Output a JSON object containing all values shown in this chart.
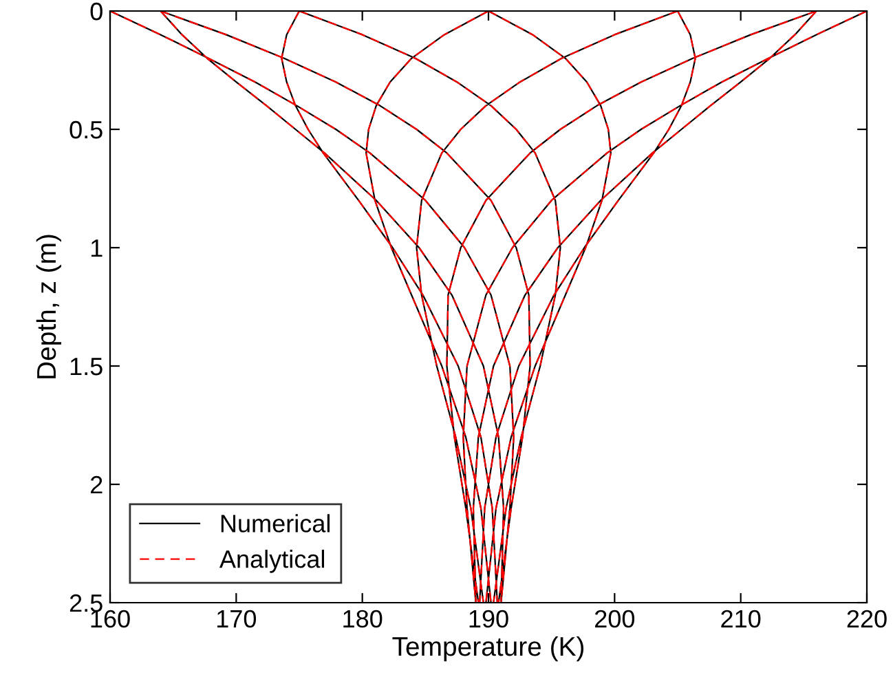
{
  "chart_data": {
    "type": "line",
    "xlabel": "Temperature (K)",
    "ylabel": "Depth, z (m)",
    "xlim": [
      160,
      220
    ],
    "xticks": [
      160,
      170,
      180,
      190,
      200,
      210,
      220
    ],
    "ylim": [
      2.5,
      0
    ],
    "yticks": [
      0,
      0.5,
      1,
      1.5,
      2,
      2.5
    ],
    "grid": false,
    "legend": "bottom left",
    "marker": "none",
    "series": [
      {
        "name": "Numerical",
        "color": "#000000",
        "line_style": "solid",
        "x": [
          220,
          216.0,
          212.2,
          208.5,
          205.2,
          202.1,
          199.4,
          195.0,
          191.9,
          189.8,
          188.3,
          188.0,
          188.3,
          189.0,
          null,
          216.0,
          214.3,
          212.3,
          210.0,
          207.6,
          205.3,
          203.0,
          198.9,
          195.5,
          192.9,
          190.4,
          189.2,
          188.8,
          189.0,
          null,
          205.0,
          206.0,
          206.4,
          206.0,
          205.3,
          204.3,
          203.1,
          200.3,
          197.6,
          195.2,
          192.4,
          190.6,
          189.7,
          189.3,
          null,
          190.0,
          193.5,
          196.1,
          197.8,
          198.9,
          199.5,
          199.7,
          199.0,
          197.7,
          196.1,
          193.7,
          191.8,
          190.6,
          189.8,
          null,
          175.0,
          180.0,
          184.2,
          187.5,
          190.2,
          192.2,
          193.7,
          195.3,
          195.7,
          195.3,
          194.1,
          192.6,
          191.4,
          190.4,
          null,
          164.0,
          169.2,
          173.8,
          177.9,
          181.4,
          184.3,
          186.7,
          190.2,
          192.2,
          193.2,
          193.3,
          192.7,
          191.8,
          190.8,
          null,
          160,
          164.0,
          167.8,
          171.5,
          174.8,
          177.9,
          180.6,
          185.0,
          188.1,
          190.2,
          191.7,
          192.0,
          191.7,
          191.0,
          null,
          164.0,
          165.7,
          167.7,
          170.0,
          172.4,
          174.7,
          177.0,
          181.1,
          184.5,
          187.1,
          189.6,
          190.8,
          191.2,
          191.0,
          null,
          175.0,
          174.0,
          173.6,
          174.0,
          174.7,
          175.7,
          176.9,
          179.7,
          182.4,
          184.8,
          187.6,
          189.4,
          190.3,
          190.7,
          null,
          190.0,
          186.5,
          183.9,
          182.2,
          181.1,
          180.5,
          180.3,
          181.0,
          182.3,
          183.9,
          186.3,
          188.2,
          189.4,
          190.2,
          null,
          205.0,
          200.0,
          195.8,
          192.5,
          189.8,
          187.8,
          186.3,
          184.7,
          184.3,
          184.7,
          185.9,
          187.4,
          188.6,
          189.6,
          null,
          216.0,
          210.8,
          206.2,
          202.1,
          198.6,
          195.7,
          193.3,
          189.8,
          187.8,
          186.8,
          186.7,
          187.3,
          188.2,
          189.2
        ],
        "values": [
          0,
          0.1,
          0.2,
          0.3,
          0.4,
          0.5,
          0.6,
          0.8,
          1.0,
          1.2,
          1.5,
          1.8,
          2.1,
          2.5,
          null,
          0,
          0.1,
          0.2,
          0.3,
          0.4,
          0.5,
          0.6,
          0.8,
          1.0,
          1.2,
          1.5,
          1.8,
          2.1,
          2.5,
          null,
          0,
          0.1,
          0.2,
          0.3,
          0.4,
          0.5,
          0.6,
          0.8,
          1.0,
          1.2,
          1.5,
          1.8,
          2.1,
          2.5,
          null,
          0,
          0.1,
          0.2,
          0.3,
          0.4,
          0.5,
          0.6,
          0.8,
          1.0,
          1.2,
          1.5,
          1.8,
          2.1,
          2.5,
          null,
          0,
          0.1,
          0.2,
          0.3,
          0.4,
          0.5,
          0.6,
          0.8,
          1.0,
          1.2,
          1.5,
          1.8,
          2.1,
          2.5,
          null,
          0,
          0.1,
          0.2,
          0.3,
          0.4,
          0.5,
          0.6,
          0.8,
          1.0,
          1.2,
          1.5,
          1.8,
          2.1,
          2.5,
          null,
          0,
          0.1,
          0.2,
          0.3,
          0.4,
          0.5,
          0.6,
          0.8,
          1.0,
          1.2,
          1.5,
          1.8,
          2.1,
          2.5,
          null,
          0,
          0.1,
          0.2,
          0.3,
          0.4,
          0.5,
          0.6,
          0.8,
          1.0,
          1.2,
          1.5,
          1.8,
          2.1,
          2.5,
          null,
          0,
          0.1,
          0.2,
          0.3,
          0.4,
          0.5,
          0.6,
          0.8,
          1.0,
          1.2,
          1.5,
          1.8,
          2.1,
          2.5,
          null,
          0,
          0.1,
          0.2,
          0.3,
          0.4,
          0.5,
          0.6,
          0.8,
          1.0,
          1.2,
          1.5,
          1.8,
          2.1,
          2.5,
          null,
          0,
          0.1,
          0.2,
          0.3,
          0.4,
          0.5,
          0.6,
          0.8,
          1.0,
          1.2,
          1.5,
          1.8,
          2.1,
          2.5,
          null,
          0,
          0.1,
          0.2,
          0.3,
          0.4,
          0.5,
          0.6,
          0.8,
          1.0,
          1.2,
          1.5,
          1.8,
          2.1,
          2.5
        ]
      },
      {
        "name": "Analytical",
        "color": "#ff0000",
        "line_style": "dashed",
        "x": [
          220,
          216.0,
          212.2,
          208.5,
          205.2,
          202.1,
          199.4,
          195.0,
          191.9,
          189.8,
          188.3,
          188.0,
          188.3,
          189.0,
          null,
          216.0,
          214.3,
          212.3,
          210.0,
          207.6,
          205.3,
          203.0,
          198.9,
          195.5,
          192.9,
          190.4,
          189.2,
          188.8,
          189.0,
          null,
          205.0,
          206.0,
          206.4,
          206.0,
          205.3,
          204.3,
          203.1,
          200.3,
          197.6,
          195.2,
          192.4,
          190.6,
          189.7,
          189.3,
          null,
          190.0,
          193.5,
          196.1,
          197.8,
          198.9,
          199.5,
          199.7,
          199.0,
          197.7,
          196.1,
          193.7,
          191.8,
          190.6,
          189.8,
          null,
          175.0,
          180.0,
          184.2,
          187.5,
          190.2,
          192.2,
          193.7,
          195.3,
          195.7,
          195.3,
          194.1,
          192.6,
          191.4,
          190.4,
          null,
          164.0,
          169.2,
          173.8,
          177.9,
          181.4,
          184.3,
          186.7,
          190.2,
          192.2,
          193.2,
          193.3,
          192.7,
          191.8,
          190.8,
          null,
          160,
          164.0,
          167.8,
          171.5,
          174.8,
          177.9,
          180.6,
          185.0,
          188.1,
          190.2,
          191.7,
          192.0,
          191.7,
          191.0,
          null,
          164.0,
          165.7,
          167.7,
          170.0,
          172.4,
          174.7,
          177.0,
          181.1,
          184.5,
          187.1,
          189.6,
          190.8,
          191.2,
          191.0,
          null,
          175.0,
          174.0,
          173.6,
          174.0,
          174.7,
          175.7,
          176.9,
          179.7,
          182.4,
          184.8,
          187.6,
          189.4,
          190.3,
          190.7,
          null,
          190.0,
          186.5,
          183.9,
          182.2,
          181.1,
          180.5,
          180.3,
          181.0,
          182.3,
          183.9,
          186.3,
          188.2,
          189.4,
          190.2,
          null,
          205.0,
          200.0,
          195.8,
          192.5,
          189.8,
          187.8,
          186.3,
          184.7,
          184.3,
          184.7,
          185.9,
          187.4,
          188.6,
          189.6,
          null,
          216.0,
          210.8,
          206.2,
          202.1,
          198.6,
          195.7,
          193.3,
          189.8,
          187.8,
          186.8,
          186.7,
          187.3,
          188.2,
          189.2
        ],
        "values": [
          0,
          0.1,
          0.2,
          0.3,
          0.4,
          0.5,
          0.6,
          0.8,
          1.0,
          1.2,
          1.5,
          1.8,
          2.1,
          2.5,
          null,
          0,
          0.1,
          0.2,
          0.3,
          0.4,
          0.5,
          0.6,
          0.8,
          1.0,
          1.2,
          1.5,
          1.8,
          2.1,
          2.5,
          null,
          0,
          0.1,
          0.2,
          0.3,
          0.4,
          0.5,
          0.6,
          0.8,
          1.0,
          1.2,
          1.5,
          1.8,
          2.1,
          2.5,
          null,
          0,
          0.1,
          0.2,
          0.3,
          0.4,
          0.5,
          0.6,
          0.8,
          1.0,
          1.2,
          1.5,
          1.8,
          2.1,
          2.5,
          null,
          0,
          0.1,
          0.2,
          0.3,
          0.4,
          0.5,
          0.6,
          0.8,
          1.0,
          1.2,
          1.5,
          1.8,
          2.1,
          2.5,
          null,
          0,
          0.1,
          0.2,
          0.3,
          0.4,
          0.5,
          0.6,
          0.8,
          1.0,
          1.2,
          1.5,
          1.8,
          2.1,
          2.5,
          null,
          0,
          0.1,
          0.2,
          0.3,
          0.4,
          0.5,
          0.6,
          0.8,
          1.0,
          1.2,
          1.5,
          1.8,
          2.1,
          2.5,
          null,
          0,
          0.1,
          0.2,
          0.3,
          0.4,
          0.5,
          0.6,
          0.8,
          1.0,
          1.2,
          1.5,
          1.8,
          2.1,
          2.5,
          null,
          0,
          0.1,
          0.2,
          0.3,
          0.4,
          0.5,
          0.6,
          0.8,
          1.0,
          1.2,
          1.5,
          1.8,
          2.1,
          2.5,
          null,
          0,
          0.1,
          0.2,
          0.3,
          0.4,
          0.5,
          0.6,
          0.8,
          1.0,
          1.2,
          1.5,
          1.8,
          2.1,
          2.5,
          null,
          0,
          0.1,
          0.2,
          0.3,
          0.4,
          0.5,
          0.6,
          0.8,
          1.0,
          1.2,
          1.5,
          1.8,
          2.1,
          2.5,
          null,
          0,
          0.1,
          0.2,
          0.3,
          0.4,
          0.5,
          0.6,
          0.8,
          1.0,
          1.2,
          1.5,
          1.8,
          2.1,
          2.5
        ]
      }
    ]
  }
}
